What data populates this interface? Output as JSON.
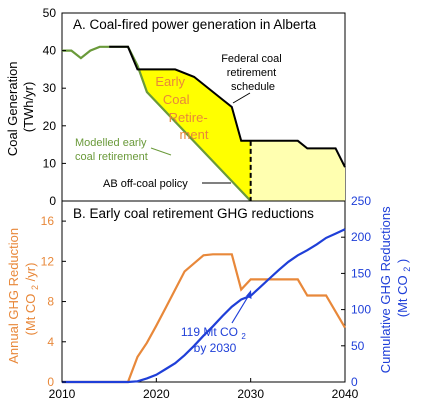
{
  "chart_data": [
    {
      "type": "area",
      "title": "A. Coal-fired power generation in Alberta",
      "ylabel": "Coal Generation (TWh/yr)",
      "ylabel_lines": [
        "Coal Generation",
        "(TWh/yr)"
      ],
      "xlim": [
        2010,
        2040
      ],
      "ylim": [
        0,
        50
      ],
      "yticks": [
        0,
        10,
        20,
        30,
        40,
        50
      ],
      "series": [
        {
          "name": "Federal coal retirement schedule",
          "label_lines": [
            "Federal coal",
            "retirement",
            "schedule"
          ],
          "color": "#000000",
          "x": [
            2015,
            2017,
            2018,
            2019,
            2022,
            2024,
            2025,
            2027,
            2028,
            2029,
            2030,
            2033,
            2035,
            2036,
            2039,
            2040
          ],
          "y": [
            41,
            41,
            35,
            35,
            35,
            33,
            31,
            27,
            25,
            16,
            16,
            16,
            16,
            14,
            14,
            9
          ]
        },
        {
          "name": "Modelled early coal retirement",
          "label_lines": [
            "Modelled early",
            "coal retirement"
          ],
          "color": "#6A9A3A",
          "x": [
            2010,
            2011,
            2012,
            2013,
            2014,
            2017,
            2018,
            2019,
            2030
          ],
          "y": [
            40,
            40,
            38,
            40,
            41,
            41,
            36,
            29,
            0
          ]
        }
      ],
      "regions": [
        {
          "name": "Early Coal Retirement",
          "label_lines": [
            "Early",
            "Coal",
            "Retire-",
            "ment"
          ],
          "color": "#FFFF00"
        },
        {
          "name": "post-2030 federal schedule",
          "color": "#FFFFB0"
        }
      ],
      "annotations": [
        {
          "text": "AB off-coal policy",
          "x": 2030
        }
      ]
    },
    {
      "type": "line",
      "title": "B. Early coal retirement GHG reductions",
      "xlim": [
        2010,
        2040
      ],
      "xticks": [
        2010,
        2020,
        2030,
        2040
      ],
      "ylabel_left": "Annual GHG Reduction (Mt CO2/yr)",
      "ylabel_left_lines": [
        "Annual GHG Reduction",
        "(Mt CO",
        "2",
        "/yr)"
      ],
      "ylim_left": [
        0,
        18
      ],
      "yticks_left": [
        0,
        4,
        8,
        12,
        16
      ],
      "ylabel_right": "Cumulative GHG Reductions (Mt CO2)",
      "ylabel_right_lines": [
        "Cumulative GHG Reductions",
        "(Mt CO",
        "2",
        ")"
      ],
      "ylim_right": [
        0,
        250
      ],
      "yticks_right": [
        0,
        50,
        100,
        150,
        200,
        250
      ],
      "series": [
        {
          "name": "Annual GHG Reduction",
          "axis": "left",
          "color": "#E8883A",
          "x": [
            2010,
            2017,
            2018,
            2019,
            2020,
            2021,
            2022,
            2023,
            2024,
            2025,
            2026,
            2027,
            2028,
            2029,
            2030,
            2033,
            2035,
            2036,
            2038,
            2040
          ],
          "y": [
            0,
            0,
            2.5,
            3.9,
            5.6,
            7.4,
            9.2,
            11.0,
            11.8,
            12.6,
            12.7,
            12.7,
            12.7,
            9.2,
            10.2,
            10.2,
            10.2,
            8.6,
            8.6,
            5.4
          ]
        },
        {
          "name": "Cumulative GHG Reductions",
          "axis": "right",
          "color": "#1F3FD8",
          "x": [
            2010,
            2017,
            2018,
            2019,
            2020,
            2021,
            2022,
            2023,
            2024,
            2025,
            2026,
            2027,
            2028,
            2029,
            2030,
            2031,
            2032,
            2033,
            2034,
            2035,
            2036,
            2037,
            2038,
            2039,
            2040
          ],
          "y": [
            0,
            0,
            1,
            5,
            10,
            18,
            26,
            37,
            50,
            64,
            77,
            91,
            104,
            114,
            119,
            131,
            143,
            155,
            166,
            175,
            182,
            190,
            199,
            205,
            211
          ]
        }
      ],
      "annotations": [
        {
          "text": "119 Mt CO2 by 2030",
          "line1_text": "119 Mt CO",
          "line1_sub": "2",
          "line2_text": "by 2030",
          "x": 2030,
          "y": 119
        }
      ]
    }
  ]
}
